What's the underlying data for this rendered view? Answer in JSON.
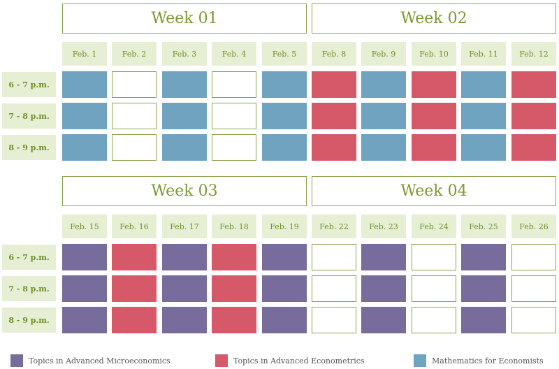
{
  "colors": {
    "micro": "#776c9b",
    "econ": "#d6596a",
    "math": "#6fa3bf"
  },
  "times": [
    "6 - 7 p.m.",
    "7 - 8 p.m.",
    "8 - 9 p.m."
  ],
  "blocks": [
    {
      "weeks": [
        {
          "title": "Week 01",
          "days": [
            "Feb. 1",
            "Feb. 2",
            "Feb. 3",
            "Feb. 4",
            "Feb. 5"
          ],
          "pattern": [
            "math",
            "empty",
            "math",
            "empty",
            "math"
          ]
        },
        {
          "title": "Week 02",
          "days": [
            "Feb. 8",
            "Feb. 9",
            "Feb. 10",
            "Feb. 11",
            "Feb. 12"
          ],
          "pattern": [
            "econ",
            "math",
            "econ",
            "math",
            "econ"
          ]
        }
      ]
    },
    {
      "weeks": [
        {
          "title": "Week 03",
          "days": [
            "Feb. 15",
            "Feb. 16",
            "Feb. 17",
            "Feb. 18",
            "Feb. 19"
          ],
          "pattern": [
            "micro",
            "econ",
            "micro",
            "econ",
            "micro"
          ]
        },
        {
          "title": "Week 04",
          "days": [
            "Feb. 22",
            "Feb. 23",
            "Feb. 24",
            "Feb. 25",
            "Feb. 26"
          ],
          "pattern": [
            "empty",
            "micro",
            "empty",
            "micro",
            "empty"
          ]
        }
      ]
    }
  ],
  "legend": [
    {
      "label": "Topics in Advanced Microeconomics",
      "color_key": "micro"
    },
    {
      "label": "Topics in Advanced Econometrics",
      "color_key": "econ"
    },
    {
      "label": "Mathematics for Economists",
      "color_key": "math"
    }
  ]
}
